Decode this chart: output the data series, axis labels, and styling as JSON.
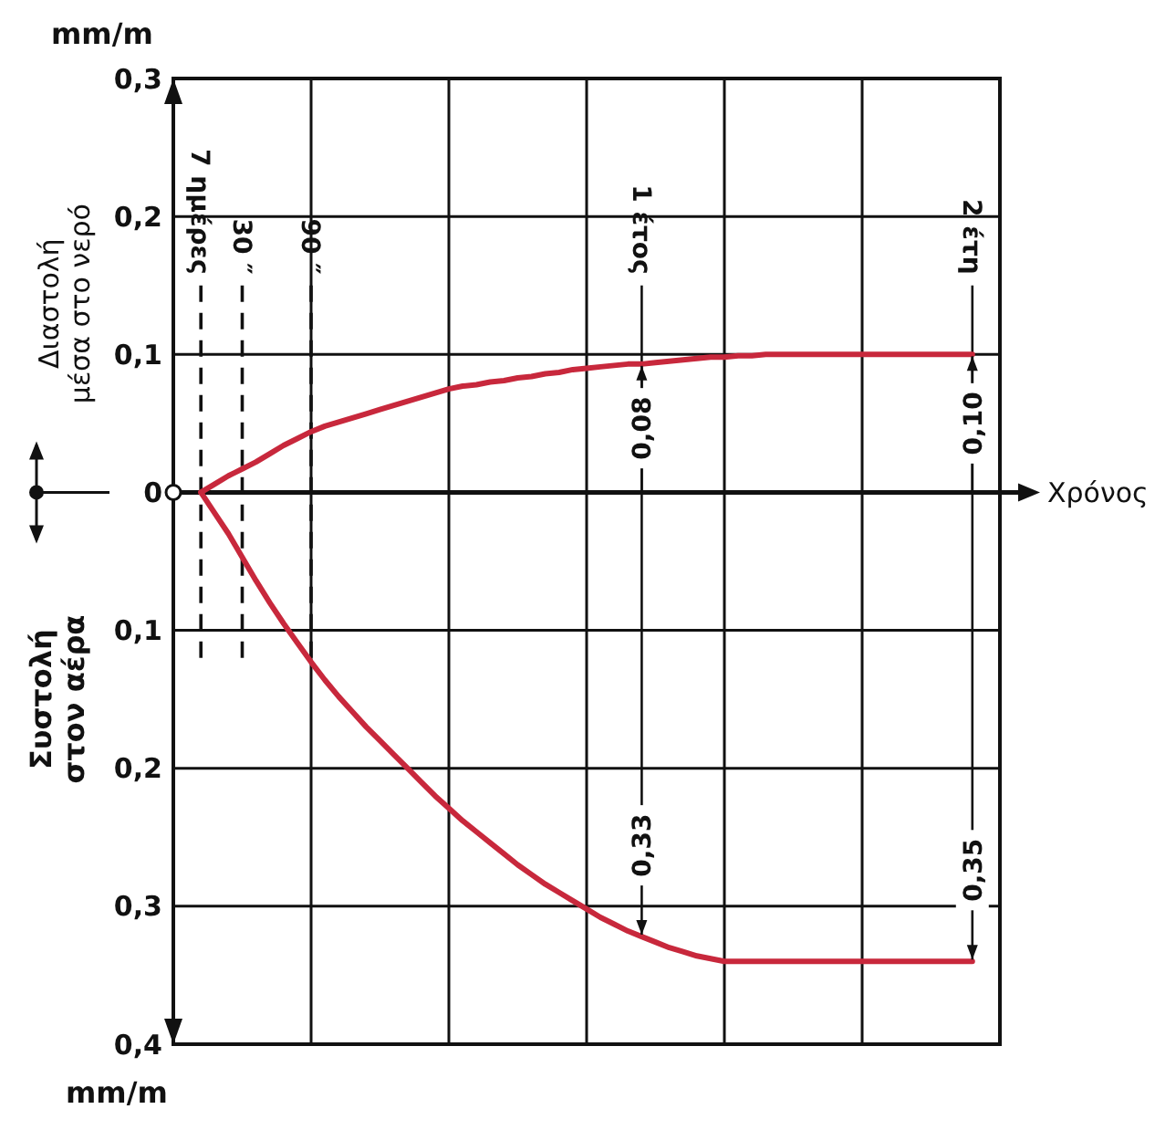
{
  "chart_data": {
    "type": "line",
    "ylabel": "Διαστολή μέσα στο νερό",
    "xlabel": "Χρόνος",
    "categories": [
      null,
      null,
      "7 ημέρες",
      null,
      null,
      "30 ″",
      null,
      null,
      null,
      null,
      "90 ″",
      null,
      null,
      null,
      null,
      null,
      null,
      null,
      null,
      null,
      null,
      null,
      null,
      null,
      null,
      null,
      null,
      null,
      null,
      null,
      null,
      null,
      null,
      null,
      "1 έτος",
      null,
      null,
      null,
      null,
      null,
      null,
      null,
      null,
      null,
      null,
      null,
      null,
      null,
      null,
      null,
      null,
      null,
      null,
      null,
      null,
      null,
      null,
      null,
      "2 έτη",
      null,
      null
    ],
    "ylim": [
      -0.4,
      0.3
    ],
    "yticks": [
      {
        "value": 0.3,
        "label": "0,3"
      },
      {
        "value": 0.2,
        "label": "0,2"
      },
      {
        "value": 0.1,
        "label": "0,1"
      },
      {
        "value": 0,
        "label": "0"
      },
      {
        "value": -0.1,
        "label": "0,1"
      },
      {
        "value": -0.2,
        "label": "0,2"
      },
      {
        "value": -0.3,
        "label": "0,3"
      },
      {
        "value": -0.4,
        "label": "0,4"
      }
    ],
    "grid": true,
    "line_style": "solid",
    "marker": "none",
    "series": [
      {
        "color": "#c8283c",
        "values": [
          null,
          null,
          0,
          0.006,
          0.012,
          0.017,
          0.022,
          0.028,
          0.034,
          0.039,
          0.044,
          0.048,
          0.051,
          0.054,
          0.057,
          0.06,
          0.063,
          0.066,
          0.069,
          0.072,
          0.075,
          0.077,
          0.078,
          0.08,
          0.081,
          0.083,
          0.084,
          0.086,
          0.087,
          0.089,
          0.09,
          0.091,
          0.092,
          0.093,
          0.093,
          0.094,
          0.095,
          0.096,
          0.097,
          0.098,
          0.098,
          0.099,
          0.099,
          0.1,
          0.1,
          0.1,
          0.1,
          0.1,
          0.1,
          0.1,
          0.1,
          0.1,
          0.1,
          0.1,
          0.1,
          0.1,
          0.1,
          0.1,
          0.1,
          null,
          null
        ]
      },
      {
        "color": "#c8283c",
        "values": [
          null,
          null,
          0,
          -0.015,
          -0.03,
          -0.047,
          -0.064,
          -0.08,
          -0.095,
          -0.109,
          -0.123,
          -0.136,
          -0.148,
          -0.159,
          -0.17,
          -0.18,
          -0.19,
          -0.2,
          -0.21,
          -0.22,
          -0.229,
          -0.238,
          -0.246,
          -0.254,
          -0.262,
          -0.27,
          -0.277,
          -0.284,
          -0.29,
          -0.296,
          -0.302,
          -0.308,
          -0.313,
          -0.318,
          -0.322,
          -0.326,
          -0.33,
          -0.333,
          -0.336,
          -0.338,
          -0.34,
          -0.34,
          -0.34,
          -0.34,
          -0.34,
          -0.34,
          -0.34,
          -0.34,
          -0.34,
          -0.34,
          -0.34,
          -0.34,
          -0.34,
          -0.34,
          -0.34,
          -0.34,
          -0.34,
          -0.34,
          -0.34,
          null,
          null
        ]
      }
    ],
    "annotations": [
      "mm/m",
      "mm/m",
      "Συστολή στον αέρα",
      {
        "text": "0,08",
        "x": "1 έτος",
        "y": 0.093
      },
      {
        "text": "0,10",
        "x": "2 έτη",
        "y": 0.1
      },
      {
        "text": "0,33",
        "x": "1 έτος",
        "y": -0.322
      },
      {
        "text": "0,35",
        "x": "2 έτη",
        "y": -0.34
      }
    ]
  }
}
